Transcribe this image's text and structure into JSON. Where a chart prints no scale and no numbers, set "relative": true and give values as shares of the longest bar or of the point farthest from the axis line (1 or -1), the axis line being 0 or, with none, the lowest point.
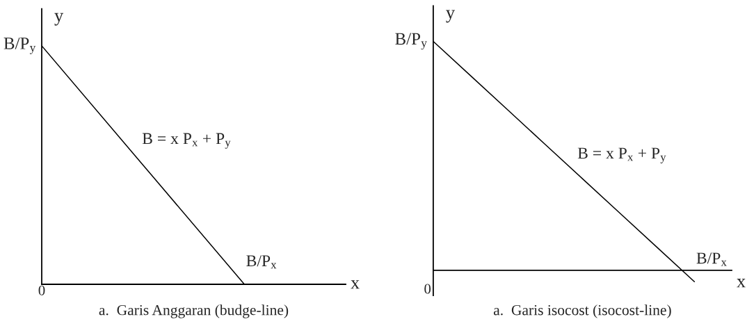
{
  "chart_data": [
    {
      "type": "line",
      "relative": true,
      "title": "a.  Garis Anggaran (budge-line)",
      "xlabel": "x",
      "ylabel": "y",
      "categories": [
        null,
        null,
        null,
        null
      ],
      "series": [
        {
          "color": "#000000",
          "values": [
            1,
            0.5,
            0,
            null
          ]
        }
      ],
      "annotations": [
        "0",
        "B/P$_{y}$",
        "B = x P$_{x}$ + P$_{y}$",
        "B/P$_{x}$"
      ],
      "line_style": "solid"
    },
    {
      "type": "line",
      "relative": true,
      "title": "a.  Garis isocost (isocost-line)",
      "xlabel": "x",
      "ylabel": "y",
      "categories": [
        null,
        null,
        null,
        null,
        null,
        null,
        null,
        null,
        null
      ],
      "series": [
        {
          "color": "#000000",
          "values": [
            1,
            0.85,
            0.7,
            0.55,
            0.4,
            0.25,
            0.1,
            -0.05,
            null
          ]
        }
      ],
      "annotations": [
        "0",
        "B/P$_{y}$",
        "B = x P$_{x}$ + P$_{y}$",
        "B/P$_{x}$"
      ],
      "line_style": "solid"
    }
  ]
}
